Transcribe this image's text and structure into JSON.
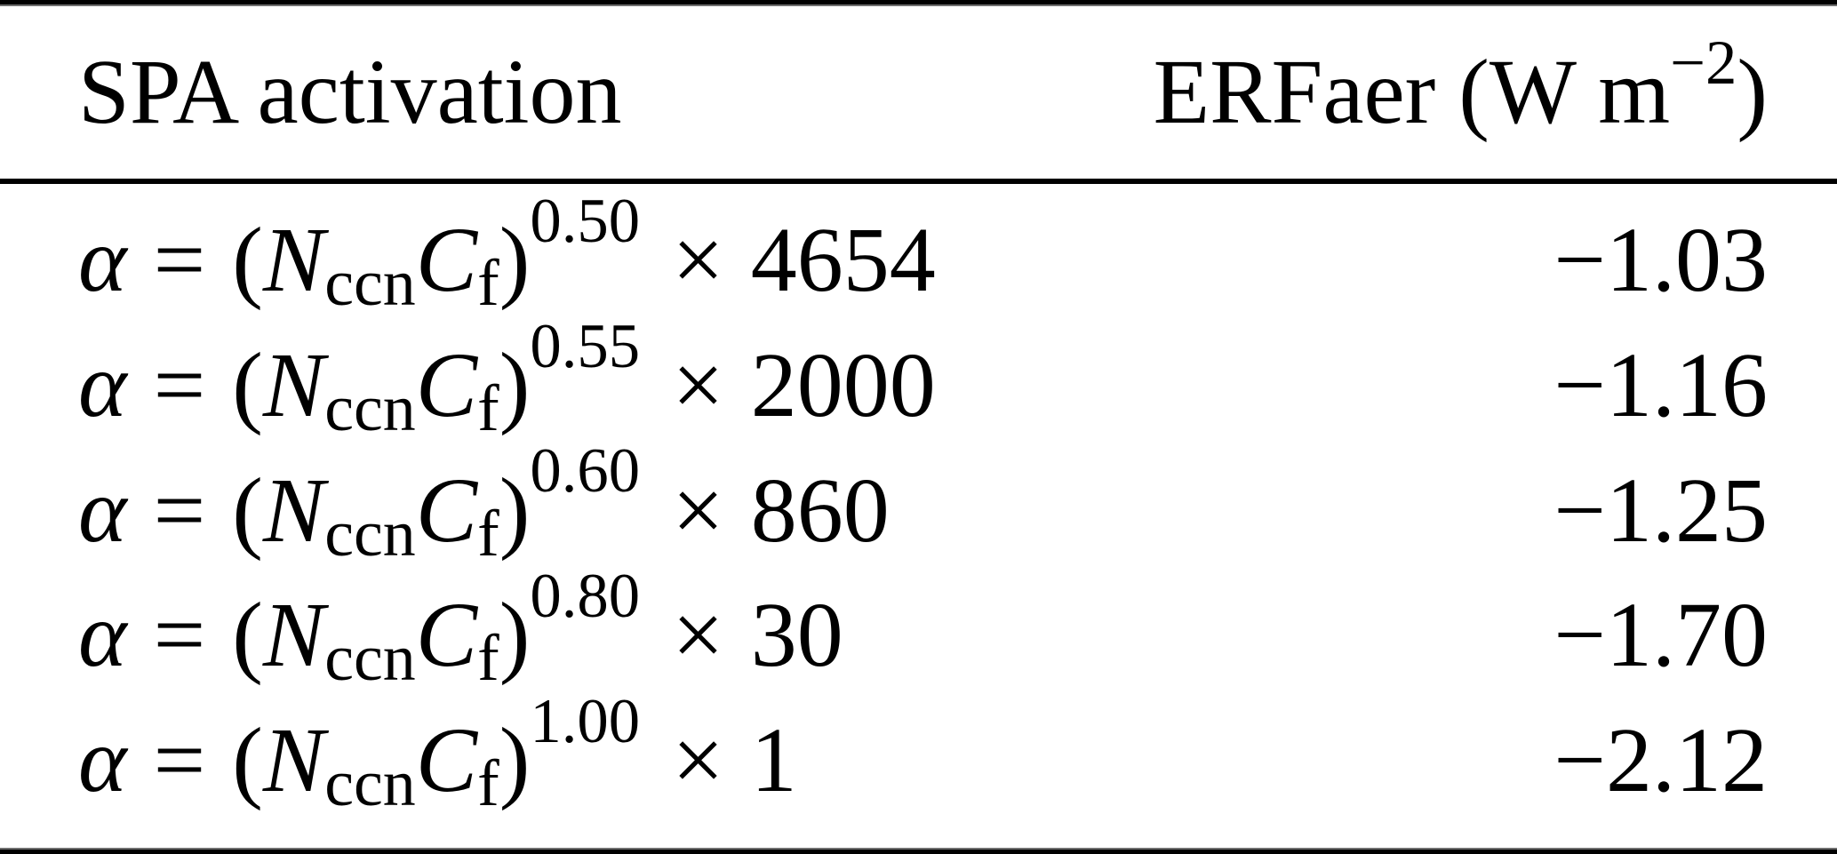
{
  "page": {
    "background_color": "#ffffff",
    "text_color": "#000000",
    "rule_color": "#000000"
  },
  "table": {
    "header": {
      "col1": "SPA activation",
      "col2_prefix": "ERFaer (W m",
      "col2_superscript": "−2",
      "col2_suffix": ")"
    },
    "formula_parts": {
      "alpha": "α",
      "equals": "=",
      "open_paren": "(",
      "n_symbol": "N",
      "n_subscript": "ccn",
      "c_symbol": "C",
      "c_subscript": "f",
      "close_paren": ")",
      "times": "×"
    },
    "rows": [
      {
        "exponent": "0.50",
        "factor": "4654",
        "erfaer": "−1.03"
      },
      {
        "exponent": "0.55",
        "factor": "2000",
        "erfaer": "−1.16"
      },
      {
        "exponent": "0.60",
        "factor": "860",
        "erfaer": "−1.25"
      },
      {
        "exponent": "0.80",
        "factor": "30",
        "erfaer": "−1.70"
      },
      {
        "exponent": "1.00",
        "factor": "1",
        "erfaer": "−2.12"
      }
    ]
  }
}
